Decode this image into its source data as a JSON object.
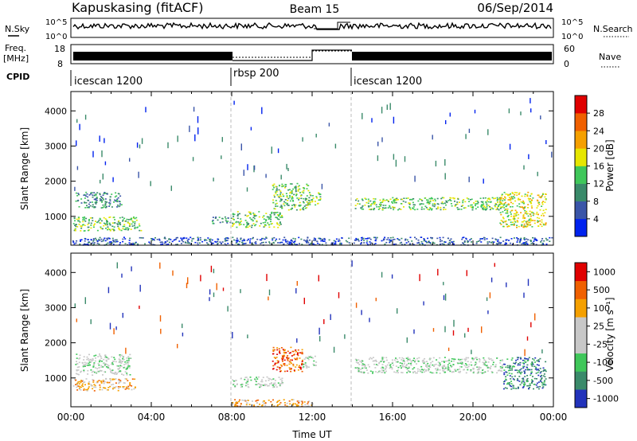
{
  "header": {
    "station": "Kapuskasing (fitACF)",
    "beam": "Beam 15",
    "date": "06/Sep/2014"
  },
  "strips": {
    "nsky_label": "N.Sky",
    "nsky_ticks": [
      "10^5",
      "10^0"
    ],
    "nsearch_label": "N.Search",
    "freq_label_1": "Freq.",
    "freq_label_2": "[MHz]",
    "freq_ticks": [
      "18",
      "8"
    ],
    "nave_label": "Nave",
    "nave_ticks": [
      "60",
      "0"
    ],
    "cpid_label": "CPID",
    "modes": [
      {
        "name": "icescan 1200",
        "start": 0,
        "end": 8
      },
      {
        "name": "rbsp 200",
        "start": 8,
        "end": 14
      },
      {
        "name": "icescan 1200",
        "start": 14,
        "end": 24
      }
    ]
  },
  "colors": {
    "power_scale": [
      "#0022ee",
      "#3a55a8",
      "#3a8a6a",
      "#3fc75a",
      "#e6e600",
      "#f5a000",
      "#f06000",
      "#e00000"
    ],
    "velocity_scale": [
      "#2233bb",
      "#3a8a6a",
      "#3fc75a",
      "#c8c8c8",
      "#c8c8c8",
      "#f5a000",
      "#f06000",
      "#e00000"
    ]
  },
  "chart_data": [
    {
      "type": "heatmap",
      "panel": "power",
      "ylabel": "Slant Range [km]",
      "colorbar_label": "Power [dB]",
      "colorbar_ticks": [
        "28",
        "24",
        "20",
        "16",
        "12",
        "8",
        "4"
      ],
      "xlim": [
        0,
        24
      ],
      "ylim": [
        180,
        4550
      ],
      "yticks": [
        1000,
        2000,
        3000,
        4000
      ],
      "scatter_bands": [
        {
          "t0": 0.1,
          "t1": 3.5,
          "r0": 600,
          "r1": 1000,
          "level": 3
        },
        {
          "t0": 0.2,
          "t1": 2.5,
          "r0": 1250,
          "r1": 1700,
          "level": 2
        },
        {
          "t0": 7.0,
          "t1": 8.0,
          "r0": 800,
          "r1": 1000,
          "level": 2
        },
        {
          "t0": 8.0,
          "t1": 10.5,
          "r0": 700,
          "r1": 1150,
          "level": 3
        },
        {
          "t0": 10.0,
          "t1": 11.8,
          "r0": 1200,
          "r1": 1950,
          "level": 3
        },
        {
          "t0": 11.8,
          "t1": 12.4,
          "r0": 1300,
          "r1": 1700,
          "level": 3
        },
        {
          "t0": 14.1,
          "t1": 21.5,
          "r0": 1200,
          "r1": 1550,
          "level": 3
        },
        {
          "t0": 21.3,
          "t1": 23.6,
          "r0": 700,
          "r1": 1700,
          "level": 4
        },
        {
          "t0": 0.0,
          "t1": 24.0,
          "r0": 200,
          "r1": 420,
          "level": 1
        }
      ]
    },
    {
      "type": "heatmap",
      "panel": "velocity",
      "xlabel": "Time UT",
      "ylabel": "Slant Range [km]",
      "colorbar_label": "Velocity [m s⁻¹]",
      "colorbar_ticks": [
        "1000",
        "500",
        "100",
        "25",
        "-25",
        "-100",
        "-500",
        "-1000"
      ],
      "xlim": [
        0,
        24
      ],
      "xticks": [
        "00:00",
        "04:00",
        "08:00",
        "12:00",
        "16:00",
        "20:00",
        "00:00"
      ],
      "ylim": [
        180,
        4550
      ],
      "yticks": [
        1000,
        2000,
        3000,
        4000
      ],
      "scatter_bands": [
        {
          "t0": 0.1,
          "t1": 3.2,
          "r0": 650,
          "r1": 1000,
          "level": 5
        },
        {
          "t0": 0.2,
          "t1": 3.0,
          "r0": 1100,
          "r1": 1700,
          "level": 3
        },
        {
          "t0": 8.0,
          "t1": 10.5,
          "r0": 750,
          "r1": 1050,
          "level": 3
        },
        {
          "t0": 8.0,
          "t1": 12.0,
          "r0": 200,
          "r1": 400,
          "level": 5
        },
        {
          "t0": 10.0,
          "t1": 11.5,
          "r0": 1200,
          "r1": 1900,
          "level": 6
        },
        {
          "t0": 11.5,
          "t1": 12.2,
          "r0": 1300,
          "r1": 1650,
          "level": 3
        },
        {
          "t0": 14.1,
          "t1": 21.5,
          "r0": 1150,
          "r1": 1600,
          "level": 3
        },
        {
          "t0": 21.5,
          "t1": 23.6,
          "r0": 700,
          "r1": 1600,
          "level": 1
        }
      ]
    }
  ]
}
